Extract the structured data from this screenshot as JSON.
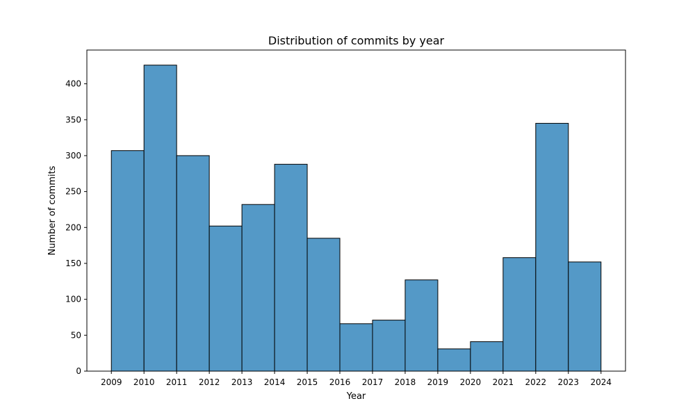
{
  "chart_data": {
    "type": "bar",
    "title": "Distribution of commits by year",
    "xlabel": "Year",
    "ylabel": "Number of commits",
    "bin_edges": [
      2009,
      2010,
      2011,
      2012,
      2013,
      2014,
      2015,
      2016,
      2017,
      2018,
      2019,
      2020,
      2021,
      2022,
      2023,
      2024
    ],
    "values": [
      307,
      426,
      300,
      202,
      232,
      288,
      185,
      66,
      71,
      127,
      31,
      41,
      158,
      345,
      152
    ],
    "xlim": [
      2008.25,
      2024.75
    ],
    "ylim": [
      0,
      447
    ],
    "x_ticks": [
      2009,
      2010,
      2011,
      2012,
      2013,
      2014,
      2015,
      2016,
      2017,
      2018,
      2019,
      2020,
      2021,
      2022,
      2023,
      2024
    ],
    "y_ticks": [
      0,
      50,
      100,
      150,
      200,
      250,
      300,
      350,
      400
    ],
    "grid": false,
    "legend": "none",
    "colors": {
      "bar_fill": "#5499c7",
      "bar_edge": "#000000",
      "axes": "#000000",
      "background": "#ffffff"
    }
  }
}
